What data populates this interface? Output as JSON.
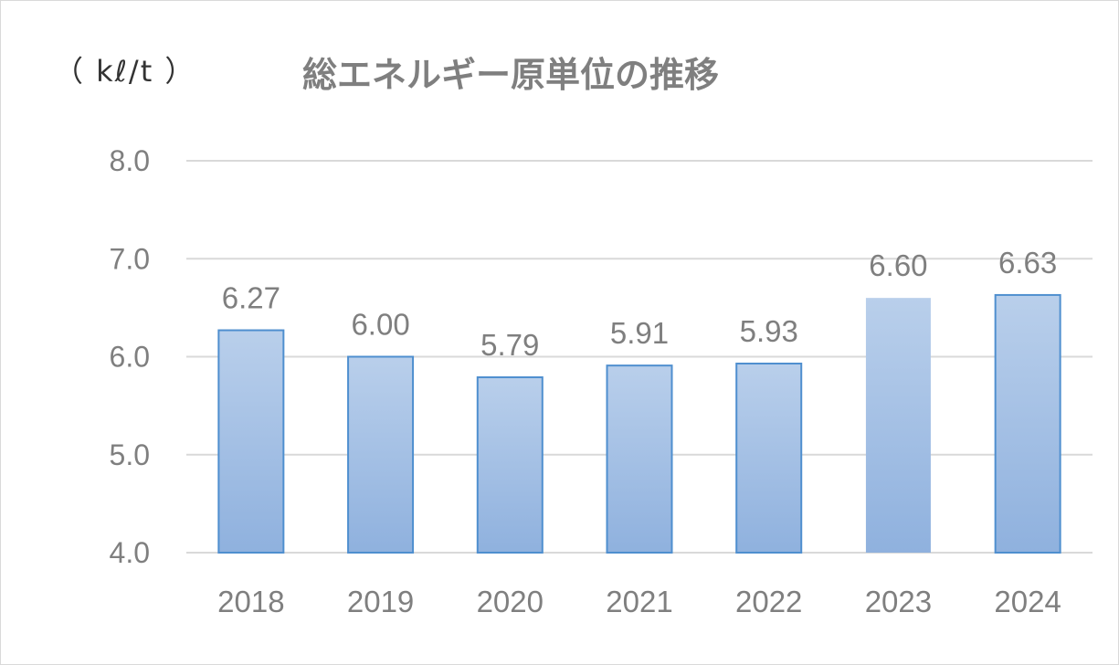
{
  "chart_data": {
    "type": "bar",
    "title": "総エネルギー原単位の推移",
    "ylabel": "（ kℓ/t ）",
    "xlabel": "",
    "categories": [
      "2018",
      "2019",
      "2020",
      "2021",
      "2022",
      "2023",
      "2024"
    ],
    "values": [
      6.27,
      6.0,
      5.79,
      5.91,
      5.93,
      6.6,
      6.63
    ],
    "data_labels": [
      "6.27",
      "6.00",
      "5.79",
      "5.91",
      "5.93",
      "6.60",
      "6.63"
    ],
    "ylim": [
      4.0,
      8.0
    ],
    "yticks": [
      "4.0",
      "5.0",
      "6.0",
      "7.0",
      "8.0"
    ],
    "grid": true,
    "legend": "none",
    "colors": {
      "bar_top": "#b9cfeb",
      "bar_bottom": "#8fb1de",
      "bar_border": "#4f8fcf",
      "grid": "#d9d9d9",
      "text": "#7f7f7f"
    }
  }
}
